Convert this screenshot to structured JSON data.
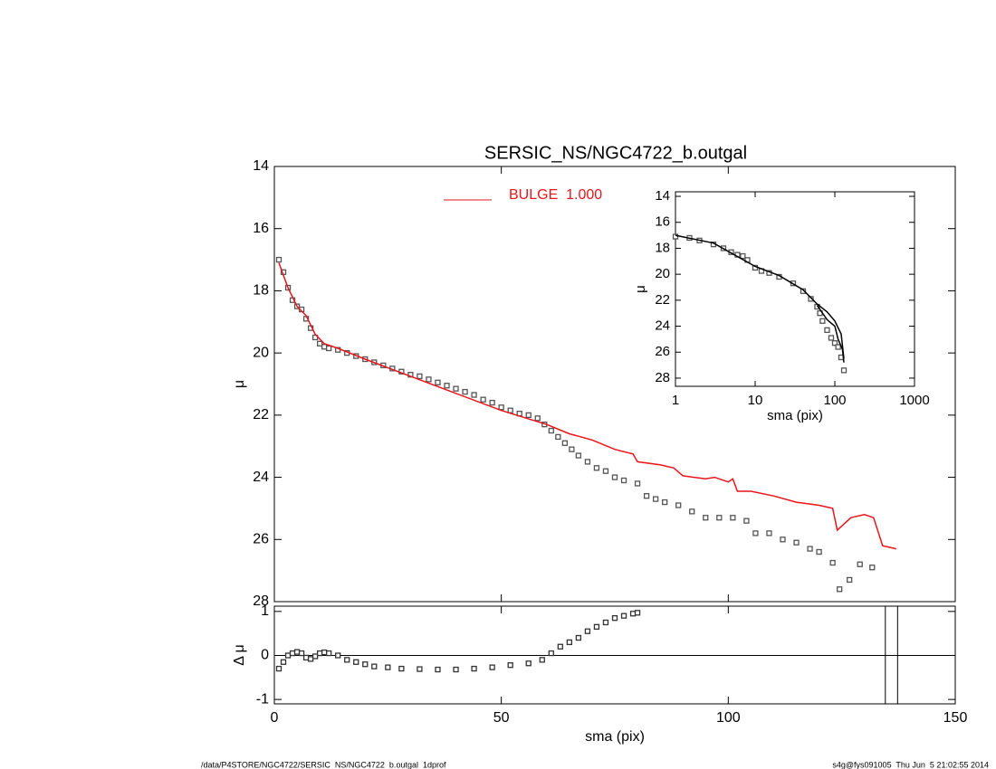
{
  "chart_data": [
    {
      "type": "scatter",
      "title": "SERSIC_NS/NGC4722_b.outgal",
      "y_label": "μ",
      "xlim": [
        0,
        150
      ],
      "xticks": [
        0,
        50,
        100,
        150
      ],
      "show_xtick_labels": false,
      "ylim": [
        28,
        14
      ],
      "yticks": [
        14,
        16,
        18,
        20,
        22,
        24,
        26,
        28
      ],
      "series": [
        {
          "style": "points",
          "color": "#555555",
          "x": [
            1,
            2,
            3,
            4,
            5,
            6,
            7,
            8,
            9,
            10,
            11,
            12,
            14,
            16,
            18,
            20,
            22,
            24,
            26,
            28,
            30,
            32,
            34,
            36,
            38,
            40,
            42,
            44,
            46,
            48,
            50,
            52,
            54,
            56,
            58,
            59.5,
            61,
            62.5,
            64,
            65.5,
            67,
            69,
            71,
            73,
            75,
            77,
            80,
            82,
            84,
            86,
            89,
            92,
            95,
            98,
            101,
            104,
            106,
            109,
            112,
            115,
            118,
            120,
            123,
            124.5,
            126.7,
            129,
            131.7
          ],
          "values": [
            17.0,
            17.4,
            17.9,
            18.3,
            18.5,
            18.6,
            18.9,
            19.2,
            19.5,
            19.7,
            19.8,
            19.85,
            19.9,
            20.0,
            20.1,
            20.2,
            20.3,
            20.4,
            20.5,
            20.6,
            20.7,
            20.75,
            20.85,
            20.95,
            21.05,
            21.15,
            21.25,
            21.35,
            21.5,
            21.6,
            21.75,
            21.85,
            21.95,
            22.0,
            22.1,
            22.3,
            22.5,
            22.7,
            22.9,
            23.1,
            23.3,
            23.5,
            23.7,
            23.8,
            24.0,
            24.1,
            24.2,
            24.6,
            24.7,
            24.8,
            24.9,
            25.1,
            25.3,
            25.3,
            25.3,
            25.4,
            25.8,
            25.8,
            26.0,
            26.1,
            26.3,
            26.4,
            26.75,
            27.6,
            27.3,
            26.8,
            26.9
          ]
        },
        {
          "style": "line",
          "name": "BULGE  1.000",
          "color": "#e8141a",
          "x": [
            1,
            3,
            5,
            7,
            9,
            11,
            14,
            20,
            30,
            40,
            50,
            60,
            65,
            70,
            75,
            79,
            80,
            85,
            88,
            90,
            95,
            97,
            100,
            101,
            102,
            105,
            110,
            115,
            120,
            123,
            124,
            127,
            130,
            132,
            134,
            137
          ],
          "values": [
            17.1,
            17.9,
            18.5,
            18.8,
            19.4,
            19.7,
            19.85,
            20.2,
            20.75,
            21.3,
            21.85,
            22.3,
            22.6,
            22.8,
            23.1,
            23.25,
            23.5,
            23.6,
            23.7,
            23.95,
            24.05,
            24.0,
            24.15,
            24.05,
            24.45,
            24.45,
            24.6,
            24.8,
            24.9,
            25.0,
            25.7,
            25.3,
            25.2,
            25.3,
            26.2,
            26.3
          ]
        }
      ]
    },
    {
      "type": "scatter",
      "x_label": "sma (pix)",
      "y_label": "μ",
      "xscale": "log",
      "xlim": [
        1,
        1000
      ],
      "xticks": [
        1,
        10,
        100,
        1000
      ],
      "show_xtick_labels": true,
      "ylim": [
        28.63,
        13.65
      ],
      "yticks": [
        14,
        16,
        18,
        20,
        22,
        24,
        26,
        28
      ],
      "series": [
        {
          "style": "points",
          "color": "#555555",
          "x": [
            1,
            1.5,
            2,
            3,
            4,
            5,
            6,
            7,
            8,
            10,
            12,
            15,
            20,
            30,
            40,
            50,
            60,
            65,
            70,
            80,
            90,
            100,
            110,
            120,
            130
          ],
          "values": [
            17.1,
            17.2,
            17.4,
            17.7,
            18.0,
            18.3,
            18.5,
            18.6,
            18.9,
            19.5,
            19.75,
            19.9,
            20.2,
            20.7,
            21.3,
            21.9,
            22.5,
            23.0,
            23.6,
            24.3,
            24.9,
            25.3,
            25.6,
            26.4,
            27.4
          ]
        },
        {
          "style": "line",
          "color": "#000000",
          "x": [
            1,
            3,
            10,
            20,
            40,
            60,
            80,
            100,
            120,
            130
          ],
          "values": [
            17.0,
            17.6,
            19.4,
            20.1,
            21.2,
            22.3,
            22.9,
            23.6,
            24.6,
            26.5
          ]
        },
        {
          "style": "line",
          "color": "#000000",
          "x": [
            60,
            80,
            100,
            110,
            125,
            130
          ],
          "values": [
            22.4,
            23.5,
            24.0,
            25.0,
            25.8,
            26.8
          ]
        }
      ]
    },
    {
      "type": "scatter",
      "x_label": "sma (pix)",
      "y_label": "Δ μ",
      "xlim": [
        0,
        150
      ],
      "xticks": [
        0,
        50,
        100,
        150
      ],
      "show_xtick_labels": true,
      "ylim": [
        -1.1,
        1.12
      ],
      "yticks": [
        -1,
        0,
        1
      ],
      "hline": 0,
      "vlines": [
        134.6,
        137.3
      ],
      "series": [
        {
          "style": "points",
          "color": "#333333",
          "x": [
            1,
            2,
            3,
            4,
            5,
            6,
            7,
            8,
            9,
            10,
            11,
            12,
            14,
            16,
            18,
            20,
            22,
            25,
            28,
            32,
            36,
            40,
            44,
            48,
            52,
            56,
            59,
            61,
            63,
            65,
            67,
            69,
            71,
            73,
            75,
            77,
            79,
            80
          ],
          "values": [
            -0.3,
            -0.15,
            0,
            0.05,
            0.08,
            0.05,
            -0.05,
            -0.08,
            -0.02,
            0.05,
            0.07,
            0.05,
            0,
            -0.1,
            -0.15,
            -0.2,
            -0.25,
            -0.27,
            -0.3,
            -0.31,
            -0.32,
            -0.32,
            -0.3,
            -0.27,
            -0.22,
            -0.18,
            -0.1,
            0.05,
            0.2,
            0.3,
            0.4,
            0.55,
            0.65,
            0.75,
            0.85,
            0.9,
            0.95,
            0.97
          ]
        }
      ]
    }
  ],
  "footer": {
    "left": "/data/P4STORE/NGC4722/SERSIC_NS/NGC4722_b.outgal_1dprof",
    "right": "s4g@fys091005  Thu Jun  5 21:02:55 2014"
  }
}
